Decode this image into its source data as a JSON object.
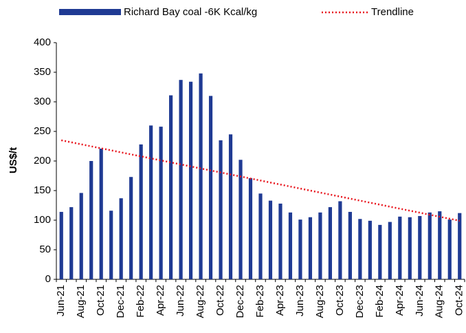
{
  "chart_data": {
    "type": "bar",
    "y_label": "US$/t",
    "categories": [
      "Jun-21",
      null,
      "Aug-21",
      null,
      "Oct-21",
      null,
      "Dec-21",
      null,
      "Feb-22",
      null,
      "Apr-22",
      null,
      "Jun-22",
      null,
      "Aug-22",
      null,
      "Oct-22",
      null,
      "Dec-22",
      null,
      "Feb-23",
      null,
      "Apr-23",
      null,
      "Jun-23",
      null,
      "Aug-23",
      null,
      "Oct-23",
      null,
      "Dec-23",
      null,
      "Feb-24",
      null,
      "Apr-24",
      null,
      "Jun-24",
      null,
      "Aug-24",
      null,
      "Oct-24"
    ],
    "series": [
      {
        "name": "Richard Bay coal -6K Kcal/kg",
        "color": "#1f3a93",
        "values": [
          114,
          122,
          146,
          200,
          221,
          116,
          137,
          173,
          228,
          260,
          258,
          311,
          337,
          334,
          348,
          310,
          235,
          245,
          202,
          171,
          145,
          133,
          128,
          113,
          101,
          105,
          113,
          122,
          132,
          114,
          102,
          99,
          92,
          97,
          106,
          105,
          107,
          113,
          115,
          101,
          112
        ]
      }
    ],
    "trendline": {
      "name": "Trendline",
      "color": "#e8141c",
      "start": 235,
      "end": 99
    },
    "ylim": [
      0,
      400
    ],
    "yticks": [
      0,
      50,
      100,
      150,
      200,
      250,
      300,
      350,
      400
    ]
  }
}
